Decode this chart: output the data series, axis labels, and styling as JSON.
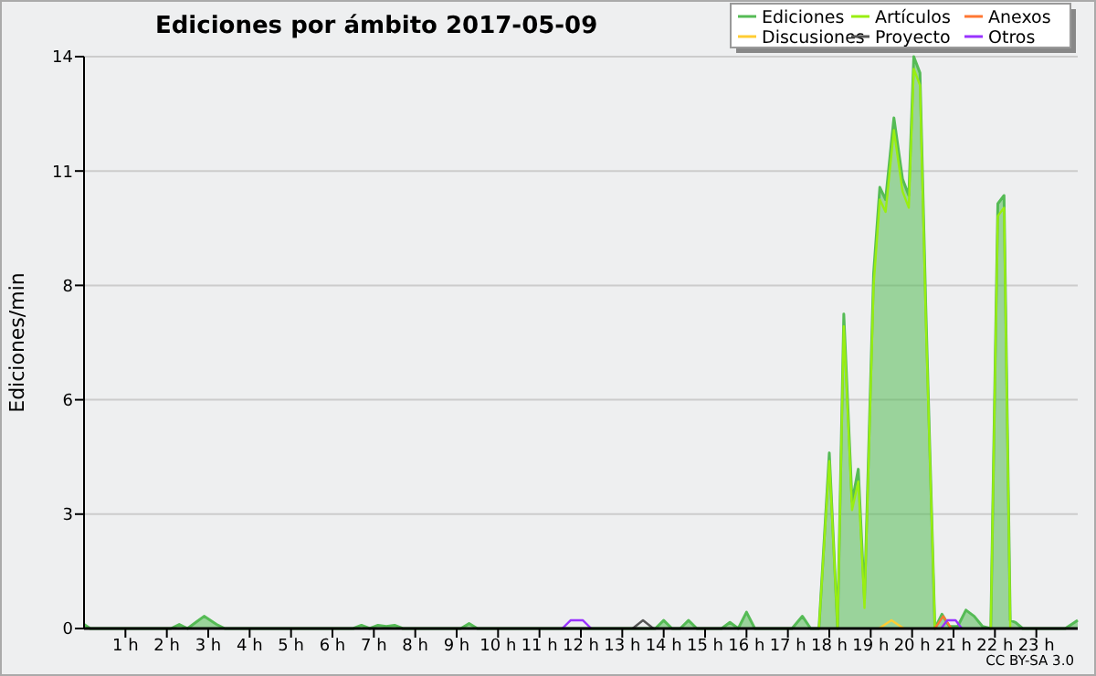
{
  "chart_data": {
    "type": "area",
    "title": "Ediciones por ámbito  2017-05-09",
    "ylabel": "Ediciones/min",
    "xlim": [
      0,
      24
    ],
    "xticks": [
      {
        "value": 1,
        "label": "1 h"
      },
      {
        "value": 2,
        "label": "2 h"
      },
      {
        "value": 3,
        "label": "3 h"
      },
      {
        "value": 4,
        "label": "4 h"
      },
      {
        "value": 5,
        "label": "5 h"
      },
      {
        "value": 6,
        "label": "6 h"
      },
      {
        "value": 7,
        "label": "7 h"
      },
      {
        "value": 8,
        "label": "8 h"
      },
      {
        "value": 9,
        "label": "9 h"
      },
      {
        "value": 10,
        "label": "10 h"
      },
      {
        "value": 11,
        "label": "11 h"
      },
      {
        "value": 12,
        "label": "12 h"
      },
      {
        "value": 13,
        "label": "13 h"
      },
      {
        "value": 14,
        "label": "14 h"
      },
      {
        "value": 15,
        "label": "15 h"
      },
      {
        "value": 16,
        "label": "16 h"
      },
      {
        "value": 17,
        "label": "17 h"
      },
      {
        "value": 18,
        "label": "18 h"
      },
      {
        "value": 19,
        "label": "19 h"
      },
      {
        "value": 20,
        "label": "20 h"
      },
      {
        "value": 21,
        "label": "21 h"
      },
      {
        "value": 22,
        "label": "22 h"
      },
      {
        "value": 23,
        "label": "23 h"
      }
    ],
    "ylim": [
      0,
      14
    ],
    "yticks": [
      0,
      {
        "value": 2.8,
        "label": "3"
      },
      {
        "value": 5.6,
        "label": "6"
      },
      {
        "value": 8.4,
        "label": "8"
      },
      {
        "value": 11.2,
        "label": "11"
      },
      14
    ],
    "grid": "y",
    "legend": "top right",
    "marker": "none",
    "annotations": [
      "CC BY-SA 3.0"
    ],
    "series": [
      {
        "name": "Ediciones",
        "color": "#55bb55",
        "x": [
          0,
          0.15,
          2.1,
          2.3,
          2.5,
          2.7,
          2.9,
          3.2,
          3.4,
          6.5,
          6.7,
          6.9,
          7.1,
          7.3,
          7.5,
          7.7,
          9.1,
          9.3,
          9.5,
          13.8,
          14.0,
          14.2,
          14.4,
          14.6,
          14.8,
          15.4,
          15.6,
          15.8,
          16.0,
          16.2,
          17.1,
          17.35,
          17.55,
          17.75,
          18.0,
          18.2,
          18.35,
          18.55,
          18.7,
          18.85,
          19.07,
          19.22,
          19.36,
          19.56,
          19.77,
          19.92,
          20.04,
          20.19,
          20.33,
          20.55,
          20.72,
          20.9,
          21.1,
          21.3,
          21.5,
          21.7,
          21.9,
          22.07,
          22.22,
          22.37,
          22.5,
          22.67,
          23.7,
          24
        ],
        "values": [
          0.1,
          0,
          0,
          0.1,
          0,
          0.15,
          0.3,
          0.1,
          0,
          0,
          0.08,
          0,
          0.08,
          0.05,
          0.08,
          0,
          0,
          0.12,
          0,
          0,
          0.2,
          0,
          0,
          0.2,
          0,
          0,
          0.15,
          0,
          0.4,
          0,
          0,
          0.3,
          0,
          0,
          4.3,
          0,
          7.7,
          3.1,
          3.9,
          0.7,
          8.7,
          10.8,
          10.5,
          12.5,
          11.0,
          10.6,
          14.0,
          13.6,
          7.9,
          0,
          0.35,
          0.05,
          0.05,
          0.45,
          0.3,
          0.05,
          0,
          10.4,
          10.6,
          0.2,
          0.15,
          0,
          0,
          0.2
        ]
      },
      {
        "name": "Artículos",
        "type": "line",
        "color": "#99ee11",
        "x": [
          17.75,
          18.0,
          18.2,
          18.35,
          18.55,
          18.7,
          18.85,
          19.07,
          19.22,
          19.36,
          19.56,
          19.77,
          19.92,
          20.04,
          20.19,
          20.33,
          20.55,
          null,
          21.9,
          22.07,
          22.22,
          22.37
        ],
        "values": [
          0,
          4.1,
          0,
          7.4,
          2.9,
          3.6,
          0.5,
          8.4,
          10.5,
          10.2,
          12.2,
          10.7,
          10.3,
          13.7,
          13.3,
          7.6,
          0,
          null,
          0,
          10.1,
          10.3,
          0
        ]
      },
      {
        "name": "Anexos",
        "type": "line",
        "color": "#ff7733",
        "x": [
          20.55,
          20.75,
          20.95
        ],
        "values": [
          0,
          0.3,
          0
        ]
      },
      {
        "name": "Discusiones",
        "type": "line",
        "color": "#ffcc33",
        "x": [
          19.2,
          19.5,
          19.8
        ],
        "values": [
          0,
          0.2,
          0
        ]
      },
      {
        "name": "Proyecto",
        "type": "line",
        "color": "#555555",
        "x": [
          13.25,
          13.5,
          13.75
        ],
        "values": [
          0,
          0.2,
          0
        ]
      },
      {
        "name": "Otros",
        "type": "line",
        "color": "#9933ff",
        "x": [
          11.55,
          11.75,
          12.05,
          12.25,
          null,
          20.7,
          20.85,
          21.05,
          21.2
        ],
        "values": [
          0,
          0.2,
          0.2,
          0,
          null,
          0,
          0.2,
          0.2,
          0
        ]
      }
    ]
  }
}
